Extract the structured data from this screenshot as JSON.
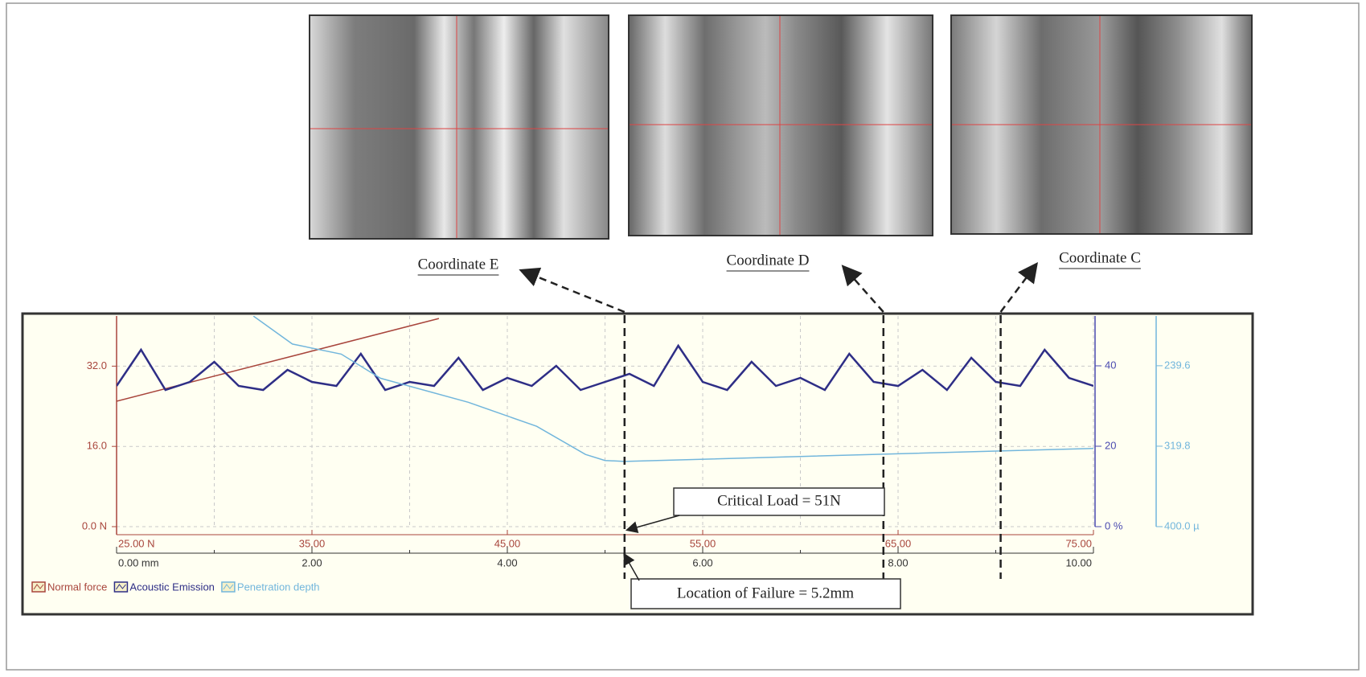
{
  "chart_data": {
    "type": "line",
    "xlim": [
      0,
      10
    ],
    "xticks": [
      {
        "value": 0,
        "label": "0.00 mm"
      },
      {
        "value": 2,
        "label": "2.00"
      },
      {
        "value": 4,
        "label": "4.00"
      },
      {
        "value": 6,
        "label": "6.00"
      },
      {
        "value": 8,
        "label": "8.00"
      },
      {
        "value": 10,
        "label": "10.00"
      }
    ],
    "xminorticks": [
      1,
      3,
      5,
      7,
      9
    ],
    "x2lim": [
      25,
      75
    ],
    "x2ticks": [
      {
        "value": 25,
        "label": "25.00 N"
      },
      {
        "value": 35,
        "label": "35.00"
      },
      {
        "value": 45,
        "label": "45.00"
      },
      {
        "value": 55,
        "label": "55.00"
      },
      {
        "value": 65,
        "label": "65.00"
      },
      {
        "value": 75,
        "label": "75.00"
      }
    ],
    "ylim": [
      0,
      42
    ],
    "yticks": [
      {
        "value": 0,
        "label": "0.0 N"
      },
      {
        "value": 16,
        "label": "16.0"
      },
      {
        "value": 32,
        "label": "32.0"
      }
    ],
    "y2lim": [
      0,
      52.4
    ],
    "y2ticks": [
      {
        "value": 0,
        "label": "0 %"
      },
      20,
      40
    ],
    "y3lim": [
      400,
      190
    ],
    "y3ticks": [
      {
        "value": 400,
        "label": "400.0 µ"
      },
      319.8,
      239.6
    ],
    "grid": true,
    "legend": "bottom-left",
    "series": [
      {
        "name": "Normal force",
        "color": "#a8453c",
        "axis": "y",
        "x": [
          0,
          3.3
        ],
        "values": [
          25,
          41.5
        ]
      },
      {
        "name": "Acoustic Emission",
        "color": "#2e2e86",
        "axis": "y2",
        "x": [
          0,
          0.25,
          0.5,
          0.75,
          1,
          1.25,
          1.5,
          1.75,
          2,
          2.25,
          2.5,
          2.75,
          3,
          3.25,
          3.5,
          3.75,
          4,
          4.25,
          4.5,
          4.75,
          5,
          5.25,
          5.5,
          5.75,
          6,
          6.25,
          6.5,
          6.75,
          7,
          7.25,
          7.5,
          7.75,
          8,
          8.25,
          8.5,
          8.75,
          9,
          9.25,
          9.5,
          9.75,
          10
        ],
        "values": [
          35,
          44,
          34,
          36,
          41,
          35,
          34,
          39,
          36,
          35,
          43,
          34,
          36,
          35,
          42,
          34,
          37,
          35,
          40,
          34,
          36,
          38,
          35,
          45,
          36,
          34,
          41,
          35,
          37,
          34,
          43,
          36,
          35,
          39,
          34,
          42,
          36,
          35,
          44,
          37,
          35
        ]
      },
      {
        "name": "Penetration depth",
        "color": "#72b6dc",
        "axis": "y3",
        "x": [
          1.4,
          1.8,
          2.3,
          2.7,
          3.6,
          4.3,
          4.8,
          5.0,
          5.2,
          7,
          10
        ],
        "values": [
          190,
          218,
          228,
          252,
          276,
          300,
          328,
          334,
          335,
          330,
          322
        ]
      }
    ],
    "markers": [
      {
        "label": "Coordinate E",
        "x": 5.2
      },
      {
        "label": "Coordinate D",
        "x": 7.85
      },
      {
        "label": "Coordinate C",
        "x": 9.05
      }
    ],
    "critical_load": {
      "label": "Critical Load = 51N",
      "value": 51
    },
    "failure": {
      "label": "Location of Failure = 5.2mm",
      "x": 5.2
    }
  }
}
